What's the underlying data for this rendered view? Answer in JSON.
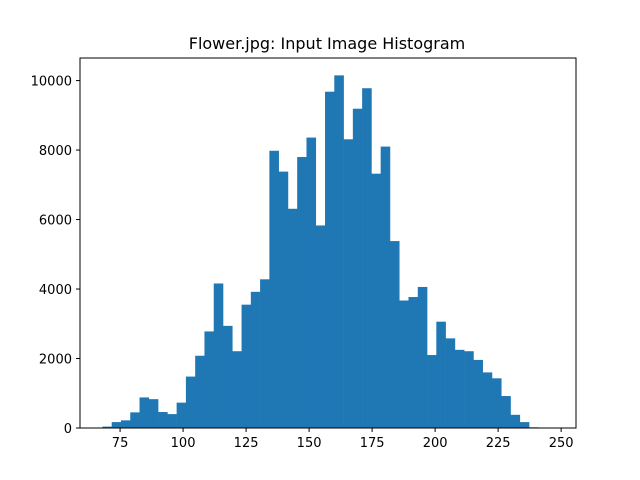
{
  "chart_data": {
    "type": "bar",
    "title": "Flower.jpg: Input Image Histogram",
    "xlabel": "",
    "ylabel": "",
    "xlim": [
      59.1,
      255.9
    ],
    "ylim": [
      0,
      10650
    ],
    "xticks": [
      75,
      100,
      125,
      150,
      175,
      200,
      225,
      250
    ],
    "yticks": [
      0,
      2000,
      4000,
      6000,
      8000,
      10000
    ],
    "bar_color": "#1f77b4",
    "bin_width": 3.68,
    "bin_edges_start": 68.0,
    "series": [
      {
        "name": "",
        "values": [
          40,
          170,
          220,
          450,
          880,
          830,
          460,
          400,
          730,
          1480,
          2080,
          2780,
          4160,
          2940,
          2210,
          3550,
          3920,
          4280,
          7980,
          7380,
          6310,
          7800,
          8360,
          5830,
          9680,
          10150,
          8310,
          9190,
          9780,
          7320,
          8100,
          5380,
          3670,
          3770,
          4060,
          2100,
          3060,
          2580,
          2250,
          2210,
          1960,
          1600,
          1430,
          920,
          380,
          170,
          20
        ]
      }
    ]
  }
}
